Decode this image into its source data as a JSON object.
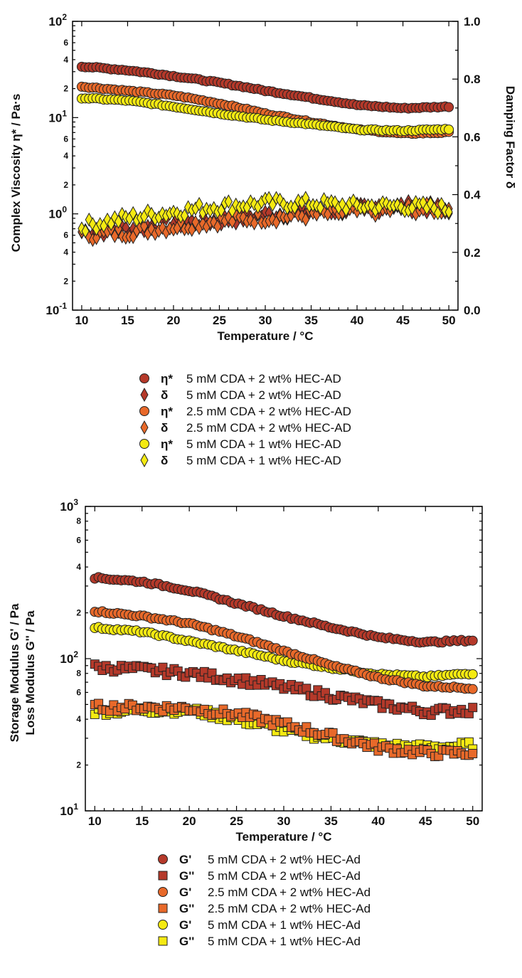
{
  "chart_data": [
    {
      "type": "scatter",
      "xlabel": "Temperature / °C",
      "ylabel_left": "Complex Viscosity η* / Pa·s",
      "ylabel_right": "Damping Factor δ",
      "xlim": [
        9,
        51
      ],
      "ylim_left": [
        0.1,
        100
      ],
      "ylim_right": [
        0,
        1.0
      ],
      "yscale_left": "log",
      "grid": false,
      "x_ticks": [
        "10",
        "15",
        "20",
        "25",
        "30",
        "35",
        "40",
        "45",
        "50"
      ],
      "y_left_ticks": [
        {
          "v": 100,
          "base": "10",
          "exp": "2"
        },
        {
          "v": 10,
          "base": "10",
          "exp": "1"
        },
        {
          "v": 1,
          "base": "10",
          "exp": "0"
        },
        {
          "v": 0.1,
          "base": "10",
          "exp": "-1"
        }
      ],
      "y_left_minor_labels": [
        {
          "v": 60,
          "t": "6"
        },
        {
          "v": 40,
          "t": "4"
        },
        {
          "v": 20,
          "t": "2"
        },
        {
          "v": 6,
          "t": "6"
        },
        {
          "v": 4,
          "t": "4"
        },
        {
          "v": 2,
          "t": "2"
        },
        {
          "v": 0.6,
          "t": "6"
        },
        {
          "v": 0.4,
          "t": "4"
        },
        {
          "v": 0.2,
          "t": "2"
        }
      ],
      "y_right_ticks": [
        "0.0",
        "0.2",
        "0.4",
        "0.6",
        "0.8",
        "1.0"
      ],
      "series": [
        {
          "sym": "η*",
          "label": "5 mM CDA + 2 wt% HEC-AD",
          "marker": "circle",
          "color": "#b5392a",
          "axis": "left",
          "x": [
            10,
            15,
            20,
            25,
            30,
            35,
            40,
            45,
            50
          ],
          "y": [
            34,
            31,
            27,
            23,
            19,
            16,
            13.5,
            12.5,
            13
          ]
        },
        {
          "sym": "δ",
          "label": "5 mM CDA + 2 wt% HEC-AD",
          "marker": "diamond",
          "color": "#b5392a",
          "axis": "right",
          "x": [
            10,
            15,
            20,
            25,
            30,
            35,
            40,
            45,
            50
          ],
          "y": [
            0.27,
            0.28,
            0.3,
            0.31,
            0.33,
            0.34,
            0.35,
            0.36,
            0.35
          ]
        },
        {
          "sym": "η*",
          "label": "2.5 mM CDA + 2 wt% HEC-AD",
          "marker": "circle",
          "color": "#e8692a",
          "axis": "left",
          "x": [
            10,
            15,
            20,
            25,
            30,
            35,
            40,
            45,
            50
          ],
          "y": [
            21,
            19,
            17,
            14,
            11,
            9,
            7.5,
            6.8,
            7
          ]
        },
        {
          "sym": "δ",
          "label": "2.5 mM CDA + 2 wt% HEC-AD",
          "marker": "diamond",
          "color": "#e8692a",
          "axis": "right",
          "x": [
            10,
            15,
            20,
            25,
            30,
            35,
            40,
            45,
            50
          ],
          "y": [
            0.26,
            0.27,
            0.29,
            0.31,
            0.32,
            0.33,
            0.34,
            0.35,
            0.35
          ]
        },
        {
          "sym": "η*",
          "label": "5 mM CDA + 1 wt% HEC-AD",
          "marker": "circle",
          "color": "#f5ea12",
          "axis": "left",
          "x": [
            10,
            15,
            20,
            25,
            30,
            35,
            40,
            45,
            50
          ],
          "y": [
            16,
            15,
            13,
            11,
            9.5,
            8.5,
            7.5,
            7.3,
            7.6
          ]
        },
        {
          "sym": "δ",
          "label": "5 mM CDA + 1 wt% HEC-AD",
          "marker": "diamond",
          "color": "#f5ea12",
          "axis": "right",
          "x": [
            10,
            15,
            20,
            25,
            30,
            35,
            40,
            45,
            50
          ],
          "y": [
            0.29,
            0.32,
            0.34,
            0.36,
            0.37,
            0.37,
            0.36,
            0.36,
            0.35
          ]
        }
      ]
    },
    {
      "type": "scatter",
      "xlabel": "Temperature / °C",
      "ylabel_line1": "Storage Modulus G' / Pa",
      "ylabel_line2": "Loss Modulus G'' / Pa",
      "xlim": [
        9,
        51
      ],
      "ylim": [
        10,
        1000
      ],
      "yscale": "log",
      "grid": false,
      "x_ticks": [
        "10",
        "15",
        "20",
        "25",
        "30",
        "35",
        "40",
        "45",
        "50"
      ],
      "y_ticks": [
        {
          "v": 1000,
          "base": "10",
          "exp": "3"
        },
        {
          "v": 100,
          "base": "10",
          "exp": "2"
        },
        {
          "v": 10,
          "base": "10",
          "exp": "1"
        }
      ],
      "y_minor_labels": [
        {
          "v": 800,
          "t": "8"
        },
        {
          "v": 600,
          "t": "6"
        },
        {
          "v": 400,
          "t": "4"
        },
        {
          "v": 200,
          "t": "2"
        },
        {
          "v": 80,
          "t": "8"
        },
        {
          "v": 60,
          "t": "6"
        },
        {
          "v": 40,
          "t": "4"
        },
        {
          "v": 20,
          "t": "2"
        }
      ],
      "series": [
        {
          "sym": "G'",
          "label": "5 mM CDA + 2 wt% HEC-Ad",
          "marker": "circle",
          "color": "#b5392a",
          "x": [
            10,
            15,
            20,
            25,
            30,
            35,
            40,
            45,
            50
          ],
          "y": [
            340,
            320,
            280,
            230,
            190,
            160,
            138,
            128,
            132
          ]
        },
        {
          "sym": "G''",
          "label": "5 mM CDA + 2 wt% HEC-Ad",
          "marker": "square",
          "color": "#b5392a",
          "x": [
            10,
            15,
            20,
            25,
            30,
            35,
            40,
            45,
            50
          ],
          "y": [
            88,
            85,
            80,
            73,
            65,
            57,
            50,
            45,
            46
          ]
        },
        {
          "sym": "G'",
          "label": "2.5 mM CDA + 2 wt% HEC-Ad",
          "marker": "circle",
          "color": "#e8692a",
          "x": [
            10,
            15,
            20,
            25,
            30,
            35,
            40,
            45,
            50
          ],
          "y": [
            205,
            190,
            170,
            140,
            112,
            90,
            75,
            66,
            64
          ]
        },
        {
          "sym": "G''",
          "label": "2.5 mM CDA + 2 wt% HEC-Ad",
          "marker": "square",
          "color": "#e8692a",
          "x": [
            10,
            15,
            20,
            25,
            30,
            35,
            40,
            45,
            50
          ],
          "y": [
            48,
            48,
            47,
            43,
            37,
            31,
            26,
            24,
            24
          ]
        },
        {
          "sym": "G'",
          "label": "5 mM CDA + 1 wt% HEC-Ad",
          "marker": "circle",
          "color": "#f5ea12",
          "x": [
            10,
            15,
            20,
            25,
            30,
            35,
            40,
            45,
            50
          ],
          "y": [
            160,
            150,
            130,
            113,
            97,
            87,
            79,
            76,
            80
          ]
        },
        {
          "sym": "G''",
          "label": "5 mM CDA + 1 wt% HEC-Ad",
          "marker": "square",
          "color": "#f5ea12",
          "x": [
            10,
            15,
            20,
            25,
            30,
            35,
            40,
            45,
            50
          ],
          "y": [
            45,
            46,
            46,
            40,
            34,
            30,
            27,
            26,
            27
          ]
        }
      ]
    }
  ]
}
